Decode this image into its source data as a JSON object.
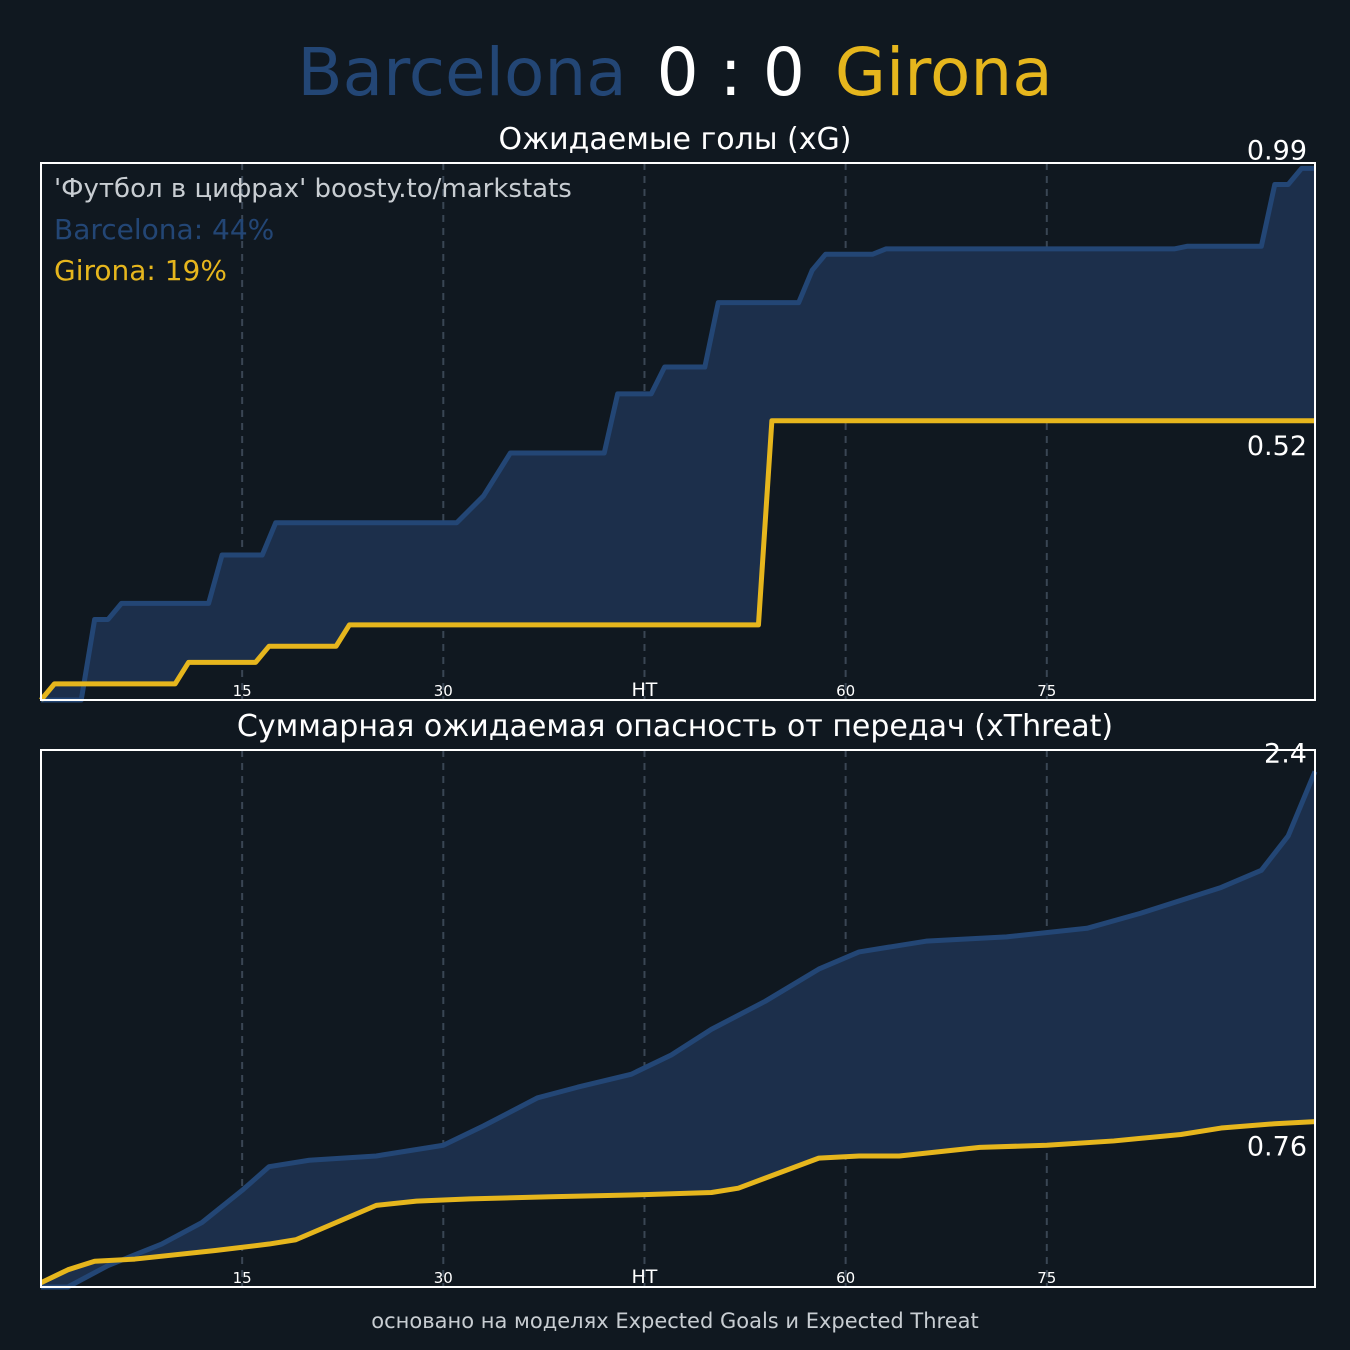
{
  "header": {
    "home_team": "Barcelona",
    "score": "0 : 0",
    "away_team": "Girona",
    "home_color": "#234675",
    "away_color": "#e6b61d"
  },
  "watermark": "'Футбол в цифрах' boosty.to/markstats",
  "footer": "основано на моделях Expected Goals и Expected Threat",
  "colors": {
    "background": "#101820",
    "home_line": "#234675",
    "home_fill": "#1c2f4b",
    "away_line": "#e6b61d",
    "grid": "#3a4654",
    "frame": "#ffffff"
  },
  "chart_data": [
    {
      "type": "area",
      "title": "Ожидаемые голы (xG)",
      "xlabel": "",
      "ylabel": "",
      "xlim": [
        0,
        95
      ],
      "ylim": [
        0,
        1.0
      ],
      "x_ticks": [
        15,
        30,
        45,
        60,
        75
      ],
      "x_tick_labels": [
        "15",
        "30",
        "HT",
        "60",
        "75"
      ],
      "grid": "vertical dashed",
      "legend": [
        {
          "label": "Barcelona: 44%"
        },
        {
          "label": "Girona: 19%"
        }
      ],
      "series": [
        {
          "name": "Barcelona",
          "end_label": "0.99",
          "points": [
            [
              0,
              0
            ],
            [
              3,
              0
            ],
            [
              4,
              0.15
            ],
            [
              5,
              0.15
            ],
            [
              6,
              0.18
            ],
            [
              12.5,
              0.18
            ],
            [
              13.5,
              0.27
            ],
            [
              16.5,
              0.27
            ],
            [
              17.5,
              0.33
            ],
            [
              31,
              0.33
            ],
            [
              33,
              0.38
            ],
            [
              35,
              0.46
            ],
            [
              42,
              0.46
            ],
            [
              43,
              0.57
            ],
            [
              45.5,
              0.57
            ],
            [
              46.5,
              0.62
            ],
            [
              49.5,
              0.62
            ],
            [
              50.5,
              0.74
            ],
            [
              56.5,
              0.74
            ],
            [
              57.5,
              0.8
            ],
            [
              58.5,
              0.83
            ],
            [
              62,
              0.83
            ],
            [
              63,
              0.84
            ],
            [
              84.5,
              0.84
            ],
            [
              85.5,
              0.845
            ],
            [
              91,
              0.845
            ],
            [
              92,
              0.96
            ],
            [
              93,
              0.96
            ],
            [
              94,
              0.99
            ],
            [
              95,
              0.99
            ]
          ]
        },
        {
          "name": "Girona",
          "end_label": "0.52",
          "points": [
            [
              0,
              0
            ],
            [
              1,
              0.03
            ],
            [
              10,
              0.03
            ],
            [
              11,
              0.07
            ],
            [
              16,
              0.07
            ],
            [
              17,
              0.1
            ],
            [
              22,
              0.1
            ],
            [
              23,
              0.14
            ],
            [
              53.5,
              0.14
            ],
            [
              54.5,
              0.52
            ],
            [
              95,
              0.52
            ]
          ]
        }
      ]
    },
    {
      "type": "area",
      "title": "Суммарная ожидаемая опасность от передач (xThreat)",
      "xlabel": "",
      "ylabel": "",
      "xlim": [
        0,
        95
      ],
      "ylim": [
        0,
        2.5
      ],
      "x_ticks": [
        15,
        30,
        45,
        60,
        75
      ],
      "x_tick_labels": [
        "15",
        "30",
        "HT",
        "60",
        "75"
      ],
      "grid": "vertical dashed",
      "series": [
        {
          "name": "Barcelona",
          "end_label": "2.4",
          "points": [
            [
              0,
              0
            ],
            [
              2,
              0
            ],
            [
              5,
              0.1
            ],
            [
              9,
              0.2
            ],
            [
              12,
              0.3
            ],
            [
              15,
              0.45
            ],
            [
              17,
              0.56
            ],
            [
              20,
              0.59
            ],
            [
              25,
              0.61
            ],
            [
              30,
              0.66
            ],
            [
              33,
              0.75
            ],
            [
              37,
              0.88
            ],
            [
              40,
              0.93
            ],
            [
              44,
              0.99
            ],
            [
              47,
              1.08
            ],
            [
              50,
              1.2
            ],
            [
              54,
              1.33
            ],
            [
              58,
              1.48
            ],
            [
              61,
              1.56
            ],
            [
              66,
              1.61
            ],
            [
              72,
              1.63
            ],
            [
              78,
              1.67
            ],
            [
              82,
              1.74
            ],
            [
              88,
              1.86
            ],
            [
              91,
              1.94
            ],
            [
              93,
              2.1
            ],
            [
              95,
              2.4
            ]
          ]
        },
        {
          "name": "Girona",
          "end_label": "0.76",
          "points": [
            [
              0,
              0.02
            ],
            [
              2,
              0.08
            ],
            [
              4,
              0.12
            ],
            [
              7,
              0.13
            ],
            [
              13,
              0.17
            ],
            [
              17,
              0.2
            ],
            [
              19,
              0.22
            ],
            [
              25,
              0.38
            ],
            [
              28,
              0.4
            ],
            [
              32,
              0.41
            ],
            [
              38,
              0.42
            ],
            [
              45,
              0.43
            ],
            [
              50,
              0.44
            ],
            [
              52,
              0.46
            ],
            [
              58,
              0.6
            ],
            [
              61,
              0.61
            ],
            [
              64,
              0.61
            ],
            [
              70,
              0.65
            ],
            [
              75,
              0.66
            ],
            [
              80,
              0.68
            ],
            [
              85,
              0.71
            ],
            [
              88,
              0.74
            ],
            [
              92,
              0.76
            ],
            [
              95,
              0.77
            ]
          ]
        }
      ]
    }
  ]
}
